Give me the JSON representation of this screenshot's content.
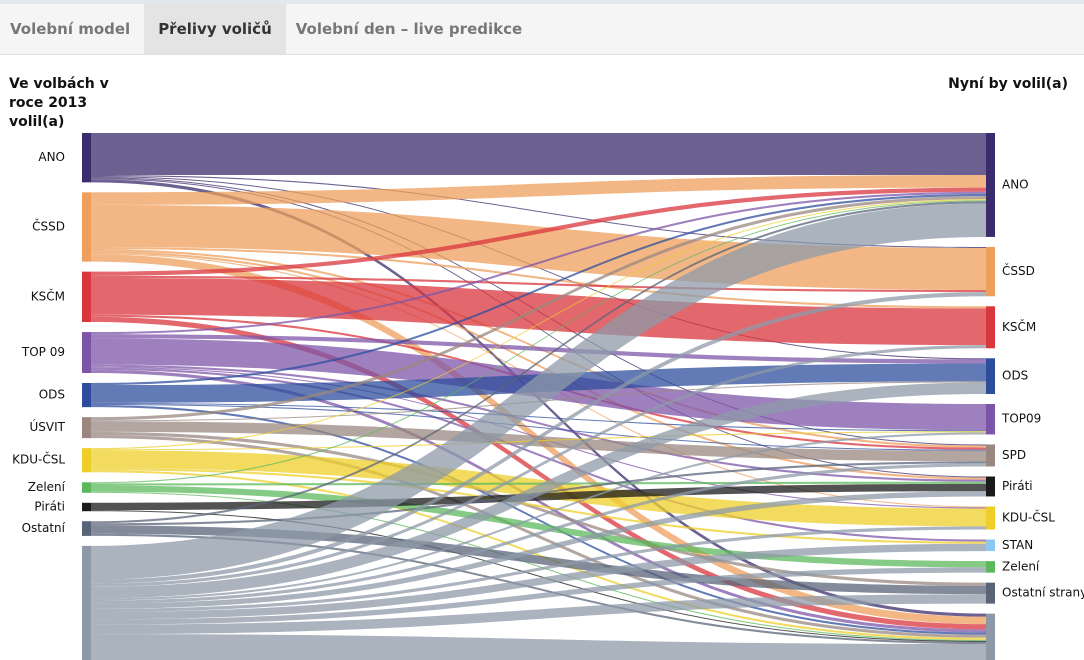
{
  "tabs": [
    "Volební model",
    "Přelivy voličů",
    "Volební den – live predikce"
  ],
  "chart_data": {
    "type": "sankey",
    "left_title": "Ve volbách v roce 2013 volil(a)",
    "right_title": "Nyní by volil(a)",
    "sources": [
      {
        "name": "ANO",
        "color": "#3b2c6b"
      },
      {
        "name": "ČSSD",
        "color": "#ee9f5c"
      },
      {
        "name": "KSČM",
        "color": "#d9363e"
      },
      {
        "name": "TOP 09",
        "color": "#7d55a8"
      },
      {
        "name": "ODS",
        "color": "#2d4d9c"
      },
      {
        "name": "ÚSVIT",
        "color": "#9a8880"
      },
      {
        "name": "KDU-ČSL",
        "color": "#eecf2a"
      },
      {
        "name": "Zelení",
        "color": "#5cb85c"
      },
      {
        "name": "Piráti",
        "color": "#1a1a1a"
      },
      {
        "name": "Ostatní",
        "color": "#5a6478"
      },
      {
        "name": null,
        "color": "#8e99a8"
      }
    ],
    "targets": [
      {
        "name": "ANO",
        "color": "#3b2c6b"
      },
      {
        "name": "ČSSD",
        "color": "#ee9f5c"
      },
      {
        "name": "KSČM",
        "color": "#d9363e"
      },
      {
        "name": "ODS",
        "color": "#2d4d9c"
      },
      {
        "name": "TOP09",
        "color": "#7d55a8"
      },
      {
        "name": "SPD",
        "color": "#9a8880"
      },
      {
        "name": "Piráti",
        "color": "#1a1a1a"
      },
      {
        "name": "KDU-ČSL",
        "color": "#eecf2a"
      },
      {
        "name": "STAN",
        "color": "#8ec8f0"
      },
      {
        "name": "Zelení",
        "color": "#5cb85c"
      },
      {
        "name": "Ostatní strany",
        "color": "#5a6478"
      },
      {
        "name": null,
        "color": "#8e99a8"
      }
    ],
    "flows": [
      {
        "source": 0,
        "target": 0,
        "value": 40
      },
      {
        "source": 0,
        "target": 1,
        "value": 1
      },
      {
        "source": 0,
        "target": 3,
        "value": 1
      },
      {
        "source": 0,
        "target": 5,
        "value": 1
      },
      {
        "source": 0,
        "target": 6,
        "value": 1
      },
      {
        "source": 0,
        "target": 11,
        "value": 3
      },
      {
        "source": 1,
        "target": 0,
        "value": 12
      },
      {
        "source": 1,
        "target": 1,
        "value": 40
      },
      {
        "source": 1,
        "target": 2,
        "value": 2
      },
      {
        "source": 1,
        "target": 5,
        "value": 2
      },
      {
        "source": 1,
        "target": 6,
        "value": 2
      },
      {
        "source": 1,
        "target": 7,
        "value": 1
      },
      {
        "source": 1,
        "target": 11,
        "value": 7
      },
      {
        "source": 2,
        "target": 0,
        "value": 4
      },
      {
        "source": 2,
        "target": 1,
        "value": 2
      },
      {
        "source": 2,
        "target": 2,
        "value": 35
      },
      {
        "source": 2,
        "target": 5,
        "value": 2
      },
      {
        "source": 2,
        "target": 11,
        "value": 5
      },
      {
        "source": 3,
        "target": 0,
        "value": 2
      },
      {
        "source": 3,
        "target": 3,
        "value": 4
      },
      {
        "source": 3,
        "target": 4,
        "value": 25
      },
      {
        "source": 3,
        "target": 6,
        "value": 2
      },
      {
        "source": 3,
        "target": 7,
        "value": 1
      },
      {
        "source": 3,
        "target": 8,
        "value": 2
      },
      {
        "source": 3,
        "target": 11,
        "value": 3
      },
      {
        "source": 4,
        "target": 0,
        "value": 2
      },
      {
        "source": 4,
        "target": 3,
        "value": 17
      },
      {
        "source": 4,
        "target": 4,
        "value": 1
      },
      {
        "source": 4,
        "target": 5,
        "value": 1
      },
      {
        "source": 4,
        "target": 11,
        "value": 2
      },
      {
        "source": 5,
        "target": 0,
        "value": 3
      },
      {
        "source": 5,
        "target": 3,
        "value": 1
      },
      {
        "source": 5,
        "target": 5,
        "value": 10
      },
      {
        "source": 5,
        "target": 10,
        "value": 3
      },
      {
        "source": 5,
        "target": 11,
        "value": 3
      },
      {
        "source": 6,
        "target": 0,
        "value": 1
      },
      {
        "source": 6,
        "target": 4,
        "value": 1
      },
      {
        "source": 6,
        "target": 7,
        "value": 17
      },
      {
        "source": 6,
        "target": 8,
        "value": 2
      },
      {
        "source": 6,
        "target": 11,
        "value": 2
      },
      {
        "source": 7,
        "target": 0,
        "value": 1
      },
      {
        "source": 7,
        "target": 6,
        "value": 2
      },
      {
        "source": 7,
        "target": 9,
        "value": 6
      },
      {
        "source": 7,
        "target": 11,
        "value": 1
      },
      {
        "source": 8,
        "target": 6,
        "value": 7
      },
      {
        "source": 8,
        "target": 11,
        "value": 1
      },
      {
        "source": 9,
        "target": 0,
        "value": 2
      },
      {
        "source": 9,
        "target": 5,
        "value": 2
      },
      {
        "source": 9,
        "target": 10,
        "value": 8
      },
      {
        "source": 9,
        "target": 11,
        "value": 2
      },
      {
        "source": 10,
        "target": 0,
        "value": 32
      },
      {
        "source": 10,
        "target": 1,
        "value": 4
      },
      {
        "source": 10,
        "target": 2,
        "value": 3
      },
      {
        "source": 10,
        "target": 3,
        "value": 11
      },
      {
        "source": 10,
        "target": 4,
        "value": 2
      },
      {
        "source": 10,
        "target": 5,
        "value": 3
      },
      {
        "source": 10,
        "target": 6,
        "value": 5
      },
      {
        "source": 10,
        "target": 7,
        "value": 3
      },
      {
        "source": 10,
        "target": 8,
        "value": 7
      },
      {
        "source": 10,
        "target": 9,
        "value": 5
      },
      {
        "source": 10,
        "target": 10,
        "value": 9
      },
      {
        "source": 10,
        "target": 11,
        "value": 36
      }
    ]
  }
}
